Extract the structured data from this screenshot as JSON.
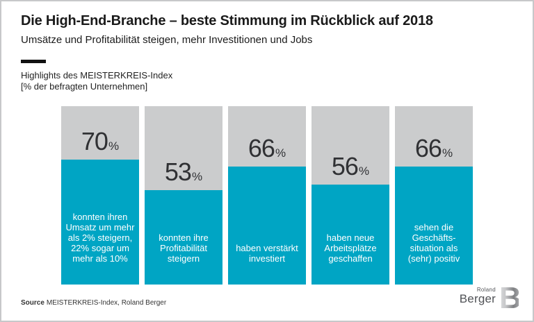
{
  "header": {
    "title": "Die High-End-Branche – beste Stimmung im Rückblick auf 2018",
    "subtitle": "Umsätze und Profitabilität steigen, mehr Investitionen und Jobs",
    "section_label_line1": "Highlights des MEISTERKREIS-Index",
    "section_label_line2": "[% der befragten Unternehmen]"
  },
  "chart_data": {
    "type": "bar",
    "title": "Highlights des MEISTERKREIS-Index",
    "unit_note": "[% der befragten Unternehmen]",
    "unit": "%",
    "ylim": [
      0,
      100
    ],
    "grid": false,
    "legend": false,
    "colors": {
      "fill": "#00a5c4",
      "track": "#cbcccd",
      "value_text": "#303134",
      "label_text": "#ffffff"
    },
    "bars": [
      {
        "value": 70,
        "label": "konnten ihren Umsatz um mehr als 2% steigern, 22% sogar um mehr als 10%"
      },
      {
        "value": 53,
        "label": "konnten ihre Profitabilität steigern"
      },
      {
        "value": 66,
        "label": "haben verstärkt investiert"
      },
      {
        "value": 56,
        "label": "haben neue Arbeitsplätze geschaffen"
      },
      {
        "value": 66,
        "label": "sehen die Geschäfts-situation als (sehr) positiv"
      }
    ]
  },
  "footer": {
    "source_label": "Source",
    "source_text": "MEISTERKREIS-Index, Roland Berger",
    "logo": {
      "top": "Roland",
      "bottom": "Berger",
      "mark": "B"
    }
  }
}
